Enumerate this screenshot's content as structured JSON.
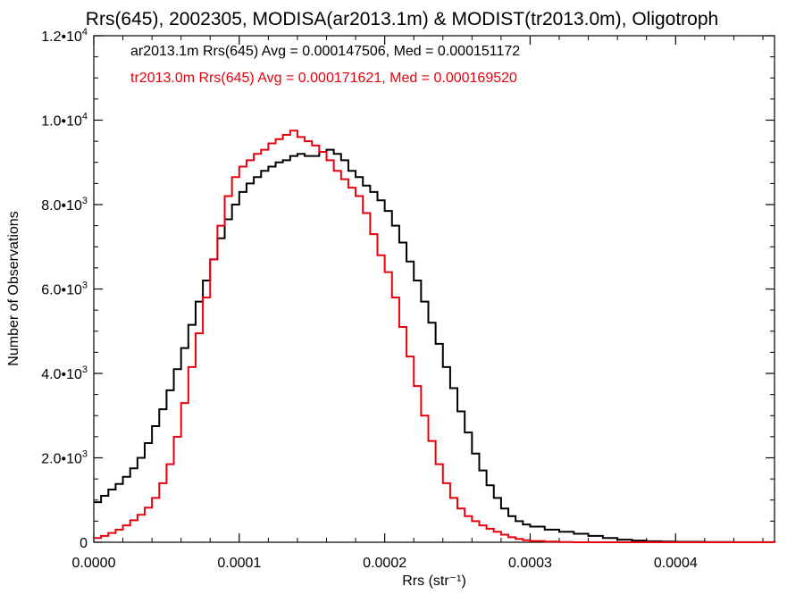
{
  "chart_data": {
    "type": "line",
    "title": "Rrs(645), 2002305, MODISA(ar2013.1m) & MODIST(tr2013.0m), Oligotroph",
    "xlabel": "Rrs (str⁻¹)",
    "ylabel": "Number of Observations",
    "xlim": [
      0.0,
      0.000468
    ],
    "ylim": [
      0,
      12000
    ],
    "x_ticks": [
      {
        "v": 0.0,
        "label": "0.0000"
      },
      {
        "v": 0.0001,
        "label": "0.0001"
      },
      {
        "v": 0.0002,
        "label": "0.0002"
      },
      {
        "v": 0.0003,
        "label": "0.0003"
      },
      {
        "v": 0.0004,
        "label": "0.0004"
      }
    ],
    "y_ticks": [
      {
        "v": 0,
        "label": "0",
        "exp": ""
      },
      {
        "v": 2000,
        "label": "2.0•10",
        "exp": "3"
      },
      {
        "v": 4000,
        "label": "4.0•10",
        "exp": "3"
      },
      {
        "v": 6000,
        "label": "6.0•10",
        "exp": "3"
      },
      {
        "v": 8000,
        "label": "8.0•10",
        "exp": "3"
      },
      {
        "v": 10000,
        "label": "1.0•10",
        "exp": "4"
      },
      {
        "v": 12000,
        "label": "1.2•10",
        "exp": "4"
      }
    ],
    "legend": [
      {
        "text": "ar2013.1m Rrs(645) Avg = 0.000147506, Med = 0.000151172",
        "color": "#000000"
      },
      {
        "text": "tr2013.0m Rrs(645) Avg = 0.000171621, Med = 0.000169520",
        "color": "#e8000b"
      }
    ],
    "legend_position": "top-left",
    "grid": false,
    "series": [
      {
        "color": "#000000",
        "x": [
          0.0,
          5e-06,
          1e-05,
          1.5e-05,
          2e-05,
          2.5e-05,
          3e-05,
          3.5e-05,
          4e-05,
          4.5e-05,
          5e-05,
          5.5e-05,
          6e-05,
          6.5e-05,
          7e-05,
          7.5e-05,
          8e-05,
          8.5e-05,
          9e-05,
          9.5e-05,
          0.0001,
          0.000105,
          0.00011,
          0.000115,
          0.00012,
          0.000125,
          0.00013,
          0.000135,
          0.00014,
          0.000145,
          0.00015,
          0.000155,
          0.00016,
          0.000165,
          0.00017,
          0.000175,
          0.00018,
          0.000185,
          0.00019,
          0.000195,
          0.0002,
          0.000205,
          0.00021,
          0.000215,
          0.00022,
          0.000225,
          0.00023,
          0.000235,
          0.00024,
          0.000245,
          0.00025,
          0.000255,
          0.00026,
          0.000265,
          0.00027,
          0.000275,
          0.00028,
          0.000285,
          0.00029,
          0.000295,
          0.0003,
          0.00031,
          0.00032,
          0.00033,
          0.00034,
          0.00035,
          0.00036,
          0.00037,
          0.00038,
          0.00039,
          0.0004,
          0.00042,
          0.00044,
          0.000468
        ],
        "y": [
          950,
          1100,
          1250,
          1380,
          1550,
          1750,
          2000,
          2350,
          2750,
          3150,
          3600,
          4100,
          4600,
          5150,
          5700,
          6200,
          6700,
          7200,
          7650,
          8000,
          8300,
          8500,
          8650,
          8800,
          8900,
          9000,
          9050,
          9150,
          9200,
          9150,
          9150,
          9250,
          9300,
          9200,
          9050,
          8800,
          8650,
          8450,
          8300,
          8100,
          7850,
          7500,
          7100,
          6650,
          6200,
          5700,
          5200,
          4700,
          4150,
          3650,
          3100,
          2600,
          2100,
          1700,
          1350,
          1050,
          800,
          620,
          500,
          420,
          370,
          300,
          250,
          200,
          150,
          100,
          60,
          40,
          25,
          15,
          10,
          5,
          2,
          0
        ]
      },
      {
        "color": "#e8000b",
        "x": [
          0.0,
          5e-06,
          1e-05,
          1.5e-05,
          2e-05,
          2.5e-05,
          3e-05,
          3.5e-05,
          4e-05,
          4.5e-05,
          5e-05,
          5.5e-05,
          6e-05,
          6.5e-05,
          7e-05,
          7.5e-05,
          8e-05,
          8.5e-05,
          9e-05,
          9.5e-05,
          0.0001,
          0.000105,
          0.00011,
          0.000115,
          0.00012,
          0.000125,
          0.00013,
          0.000135,
          0.00014,
          0.000145,
          0.00015,
          0.000155,
          0.00016,
          0.000165,
          0.00017,
          0.000175,
          0.00018,
          0.000185,
          0.00019,
          0.000195,
          0.0002,
          0.000205,
          0.00021,
          0.000215,
          0.00022,
          0.000225,
          0.00023,
          0.000235,
          0.00024,
          0.000245,
          0.00025,
          0.000255,
          0.00026,
          0.000265,
          0.00027,
          0.000275,
          0.00028,
          0.000285,
          0.00029,
          0.000295,
          0.0003,
          0.00031,
          0.00032,
          0.00033,
          0.00034,
          0.00035,
          0.00036,
          0.00037,
          0.00038,
          0.00039,
          0.0004,
          0.00042,
          0.00044,
          0.000468
        ],
        "y": [
          100,
          150,
          220,
          300,
          400,
          520,
          650,
          820,
          1050,
          1400,
          1850,
          2500,
          3300,
          4150,
          4950,
          5800,
          6700,
          7500,
          8200,
          8650,
          8900,
          9050,
          9200,
          9300,
          9450,
          9550,
          9650,
          9750,
          9600,
          9500,
          9400,
          9250,
          9050,
          8800,
          8600,
          8400,
          8200,
          7800,
          7300,
          6800,
          6400,
          5800,
          5100,
          4400,
          3700,
          3000,
          2400,
          1850,
          1400,
          1050,
          800,
          620,
          500,
          400,
          320,
          250,
          180,
          120,
          80,
          50,
          30,
          15,
          5,
          0,
          0,
          0,
          0,
          0,
          0,
          0,
          0,
          0,
          0,
          0
        ]
      }
    ]
  }
}
